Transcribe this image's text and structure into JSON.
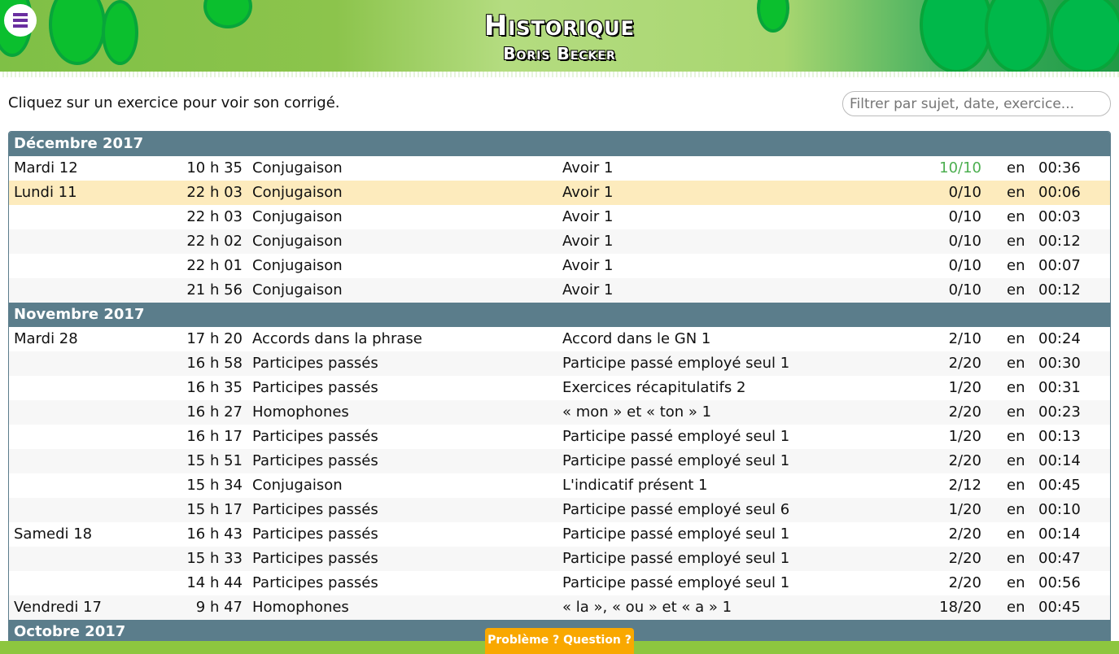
{
  "header": {
    "title": "Historique",
    "subtitle": "Boris Becker",
    "menu_icon": "hamburger-icon"
  },
  "intro": "Cliquez sur un exercice pour voir son corrigé.",
  "filter": {
    "placeholder": "Filtrer par sujet, date, exercice..."
  },
  "colors": {
    "month_header": "#5b7d8b",
    "highlight": "#fdebbd",
    "perfect_score": "#4caf50",
    "help_button": "#f9a800"
  },
  "months": [
    {
      "label": "Décembre 2017",
      "rows": [
        {
          "day": "Mardi 12",
          "time": "10 h 35",
          "subject": "Conjugaison",
          "exercise": "Avoir 1",
          "score": "10/10",
          "en": "en",
          "duration": "00:36",
          "perfect": true
        },
        {
          "day": "Lundi 11",
          "time": "22 h 03",
          "subject": "Conjugaison",
          "exercise": "Avoir 1",
          "score": "0/10",
          "en": "en",
          "duration": "00:06",
          "highlighted": true
        },
        {
          "day": "",
          "time": "22 h 03",
          "subject": "Conjugaison",
          "exercise": "Avoir 1",
          "score": "0/10",
          "en": "en",
          "duration": "00:03"
        },
        {
          "day": "",
          "time": "22 h 02",
          "subject": "Conjugaison",
          "exercise": "Avoir 1",
          "score": "0/10",
          "en": "en",
          "duration": "00:12"
        },
        {
          "day": "",
          "time": "22 h 01",
          "subject": "Conjugaison",
          "exercise": "Avoir 1",
          "score": "0/10",
          "en": "en",
          "duration": "00:07"
        },
        {
          "day": "",
          "time": "21 h 56",
          "subject": "Conjugaison",
          "exercise": "Avoir 1",
          "score": "0/10",
          "en": "en",
          "duration": "00:12"
        }
      ]
    },
    {
      "label": "Novembre 2017",
      "rows": [
        {
          "day": "Mardi 28",
          "time": "17 h 20",
          "subject": "Accords dans la phrase",
          "exercise": "Accord dans le GN 1",
          "score": "2/10",
          "en": "en",
          "duration": "00:24"
        },
        {
          "day": "",
          "time": "16 h 58",
          "subject": "Participes passés",
          "exercise": "Participe passé employé seul 1",
          "score": "2/20",
          "en": "en",
          "duration": "00:30"
        },
        {
          "day": "",
          "time": "16 h 35",
          "subject": "Participes passés",
          "exercise": "Exercices récapitulatifs 2",
          "score": "1/20",
          "en": "en",
          "duration": "00:31"
        },
        {
          "day": "",
          "time": "16 h 27",
          "subject": "Homophones",
          "exercise": "« mon » et « ton » 1",
          "score": "2/20",
          "en": "en",
          "duration": "00:23"
        },
        {
          "day": "",
          "time": "16 h 17",
          "subject": "Participes passés",
          "exercise": "Participe passé employé seul 1",
          "score": "1/20",
          "en": "en",
          "duration": "00:13"
        },
        {
          "day": "",
          "time": "15 h 51",
          "subject": "Participes passés",
          "exercise": "Participe passé employé seul 1",
          "score": "2/20",
          "en": "en",
          "duration": "00:14"
        },
        {
          "day": "",
          "time": "15 h 34",
          "subject": "Conjugaison",
          "exercise": "L'indicatif présent 1",
          "score": "2/12",
          "en": "en",
          "duration": "00:45"
        },
        {
          "day": "",
          "time": "15 h 17",
          "subject": "Participes passés",
          "exercise": "Participe passé employé seul 6",
          "score": "1/20",
          "en": "en",
          "duration": "00:10"
        },
        {
          "day": "Samedi 18",
          "time": "16 h 43",
          "subject": "Participes passés",
          "exercise": "Participe passé employé seul 1",
          "score": "2/20",
          "en": "en",
          "duration": "00:14"
        },
        {
          "day": "",
          "time": "15 h 33",
          "subject": "Participes passés",
          "exercise": "Participe passé employé seul 1",
          "score": "2/20",
          "en": "en",
          "duration": "00:47"
        },
        {
          "day": "",
          "time": "14 h 44",
          "subject": "Participes passés",
          "exercise": "Participe passé employé seul 1",
          "score": "2/20",
          "en": "en",
          "duration": "00:56"
        },
        {
          "day": "Vendredi 17",
          "time": "9 h 47",
          "subject": "Homophones",
          "exercise": "« la », « ou » et « a » 1",
          "score": "18/20",
          "en": "en",
          "duration": "00:45"
        }
      ]
    },
    {
      "label": "Octobre 2017",
      "rows": []
    }
  ],
  "help_button": "Problème ? Question ?"
}
